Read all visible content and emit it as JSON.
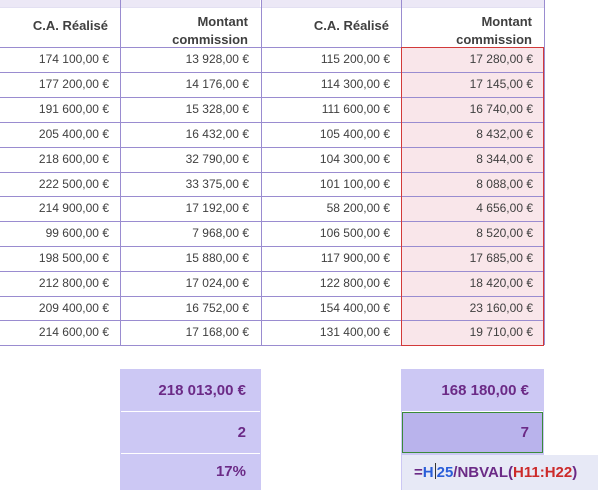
{
  "headers": {
    "ca_left": "C.A. Réalisé",
    "montant_left_l1": "Montant",
    "montant_left_l2": "commission",
    "ca_right": "C.A. Réalisé",
    "montant_right_l1": "Montant",
    "montant_right_l2": "commission"
  },
  "rows": [
    {
      "ca1": "174 100,00 €",
      "com1": "13 928,00 €",
      "ca2": "115 200,00 €",
      "com2": "17 280,00 €"
    },
    {
      "ca1": "177 200,00 €",
      "com1": "14 176,00 €",
      "ca2": "114 300,00 €",
      "com2": "17 145,00 €"
    },
    {
      "ca1": "191 600,00 €",
      "com1": "15 328,00 €",
      "ca2": "111 600,00 €",
      "com2": "16 740,00 €"
    },
    {
      "ca1": "205 400,00 €",
      "com1": "16 432,00 €",
      "ca2": "105 400,00 €",
      "com2": "8 432,00 €"
    },
    {
      "ca1": "218 600,00 €",
      "com1": "32 790,00 €",
      "ca2": "104 300,00 €",
      "com2": "8 344,00 €"
    },
    {
      "ca1": "222 500,00 €",
      "com1": "33 375,00 €",
      "ca2": "101 100,00 €",
      "com2": "8 088,00 €"
    },
    {
      "ca1": "214 900,00 €",
      "com1": "17 192,00 €",
      "ca2": "58 200,00 €",
      "com2": "4 656,00 €"
    },
    {
      "ca1": "99 600,00 €",
      "com1": "7 968,00 €",
      "ca2": "106 500,00 €",
      "com2": "8 520,00 €"
    },
    {
      "ca1": "198 500,00 €",
      "com1": "15 880,00 €",
      "ca2": "117 900,00 €",
      "com2": "17 685,00 €"
    },
    {
      "ca1": "212 800,00 €",
      "com1": "17 024,00 €",
      "ca2": "122 800,00 €",
      "com2": "18 420,00 €"
    },
    {
      "ca1": "209 400,00 €",
      "com1": "16 752,00 €",
      "ca2": "154 400,00 €",
      "com2": "23 160,00 €"
    },
    {
      "ca1": "214 600,00 €",
      "com1": "17 168,00 €",
      "ca2": "131 400,00 €",
      "com2": "19 710,00 €"
    }
  ],
  "summary_left": {
    "total": "218 013,00 €",
    "count": "2",
    "rate": "17%"
  },
  "summary_right": {
    "total": "168 180,00 €",
    "count": "7"
  },
  "formula": {
    "eq": "=",
    "ref1_a": "H",
    "ref1_b": "25",
    "fn": "/NBVAL(",
    "ref2": "H11:H22",
    "close": ")"
  },
  "colors": {
    "grid": "#9a8cd0",
    "summary_fill": "#ccc8f4",
    "summary_text": "#6b2a86",
    "selection_fill": "#f9e6ea",
    "selection_border": "#d23a3a",
    "active_cell_border": "#3a8a3a"
  }
}
